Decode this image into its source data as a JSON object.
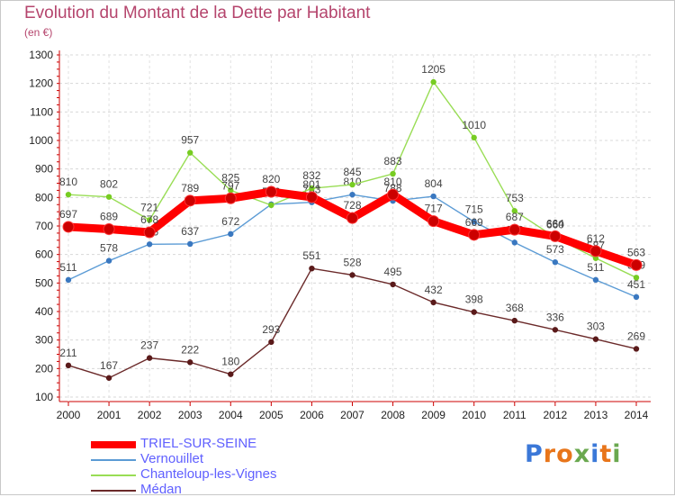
{
  "title": "Evolution du Montant de la Dette par Habitant",
  "unit_label": "(en €)",
  "brand": "Proxiti",
  "brand_letters": [
    {
      "ch": "P",
      "color": "#3b78d8"
    },
    {
      "ch": "r",
      "color": "#e8751a"
    },
    {
      "ch": "o",
      "color": "#e8751a"
    },
    {
      "ch": "x",
      "color": "#6aa84f"
    },
    {
      "ch": "i",
      "color": "#3b78d8"
    },
    {
      "ch": "t",
      "color": "#e8751a"
    },
    {
      "ch": "i",
      "color": "#6aa84f"
    }
  ],
  "chart_data": {
    "type": "line",
    "x": [
      "2000",
      "2001",
      "2002",
      "2003",
      "2004",
      "2005",
      "2006",
      "2007",
      "2008",
      "2009",
      "2010",
      "2011",
      "2012",
      "2013",
      "2014"
    ],
    "ylim": [
      100,
      1300
    ],
    "yticks": [
      100,
      200,
      300,
      400,
      500,
      600,
      700,
      800,
      900,
      1000,
      1100,
      1200,
      1300
    ],
    "grid": true,
    "legend_position": "bottom-left",
    "series": [
      {
        "name": "TRIEL-SUR-SEINE",
        "color": "#ff0000",
        "marker": "#cc0000",
        "values": [
          697,
          689,
          678,
          789,
          797,
          820,
          801,
          728,
          810,
          717,
          669,
          687,
          664,
          612,
          563
        ]
      },
      {
        "name": "Vernouillet",
        "color": "#5b9bd5",
        "marker": "#3a78c0",
        "values": [
          511,
          578,
          636,
          637,
          672,
          776,
          783,
          810,
          788,
          804,
          715,
          642,
          573,
          511,
          451
        ]
      },
      {
        "name": "Chanteloup-les-Vignes",
        "color": "#99dd55",
        "marker": "#77cc22",
        "values": [
          810,
          802,
          721,
          957,
          825,
          773,
          832,
          845,
          883,
          1205,
          1010,
          753,
          660,
          587,
          519
        ]
      },
      {
        "name": "Médan",
        "color": "#6b2a2a",
        "marker": "#5a1a1a",
        "values": [
          211,
          167,
          237,
          222,
          180,
          293,
          551,
          528,
          495,
          432,
          398,
          368,
          336,
          303,
          269
        ]
      }
    ]
  }
}
